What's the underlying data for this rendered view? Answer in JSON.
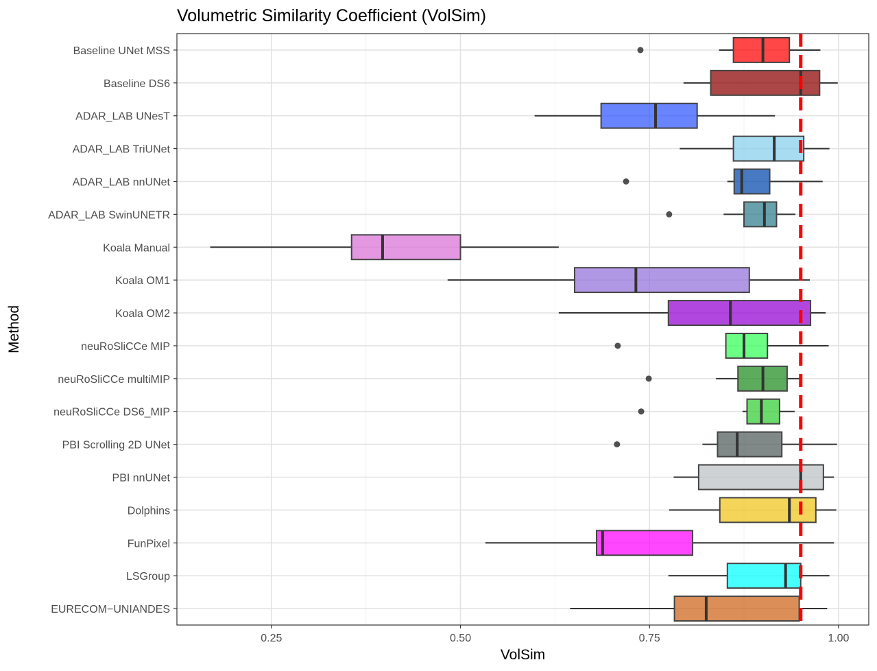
{
  "chart_data": {
    "type": "boxplot",
    "orientation": "horizontal",
    "title": "Volumetric Similarity Coefficient (VolSim)",
    "xlabel": "VolSim",
    "ylabel": "Method",
    "xlim": [
      0.125,
      1.04
    ],
    "x_ticks": [
      0.25,
      0.5,
      0.75,
      1.0
    ],
    "x_tick_labels": [
      "0.25",
      "0.50",
      "0.75",
      "1.00"
    ],
    "x_minor_ticks": [
      0.375,
      0.625,
      0.875
    ],
    "grid": true,
    "reference_line": {
      "x": 0.95,
      "color": "#ff0000",
      "style": "dashed"
    },
    "series": [
      {
        "name": "Baseline UNet MSS",
        "color": "#ff0000",
        "whisker_low": 0.842,
        "q1": 0.861,
        "median": 0.9,
        "q3": 0.935,
        "whisker_high": 0.976,
        "outliers": [
          0.738
        ]
      },
      {
        "name": "Baseline DS6",
        "color": "#8b0000",
        "whisker_low": 0.795,
        "q1": 0.831,
        "median": 0.95,
        "q3": 0.975,
        "whisker_high": 0.999,
        "outliers": []
      },
      {
        "name": "ADAR_LAB UNesT",
        "color": "#2f54ff",
        "whisker_low": 0.598,
        "q1": 0.686,
        "median": 0.758,
        "q3": 0.813,
        "whisker_high": 0.916,
        "outliers": []
      },
      {
        "name": "ADAR_LAB TriUNet",
        "color": "#87ceeb",
        "whisker_low": 0.79,
        "q1": 0.861,
        "median": 0.915,
        "q3": 0.954,
        "whisker_high": 0.988,
        "outliers": []
      },
      {
        "name": "ADAR_LAB nnUNet",
        "color": "#0047ab",
        "whisker_low": 0.853,
        "q1": 0.862,
        "median": 0.872,
        "q3": 0.909,
        "whisker_high": 0.979,
        "outliers": [
          0.719
        ]
      },
      {
        "name": "ADAR_LAB SwinUNETR",
        "color": "#2e7d8c",
        "whisker_low": 0.848,
        "q1": 0.875,
        "median": 0.902,
        "q3": 0.918,
        "whisker_high": 0.943,
        "outliers": [
          0.776
        ]
      },
      {
        "name": "Koala Manual",
        "color": "#da70d6",
        "whisker_low": 0.169,
        "q1": 0.356,
        "median": 0.397,
        "q3": 0.5,
        "whisker_high": 0.63,
        "outliers": []
      },
      {
        "name": "Koala OM1",
        "color": "#9370db",
        "whisker_low": 0.483,
        "q1": 0.651,
        "median": 0.732,
        "q3": 0.882,
        "whisker_high": 0.962,
        "outliers": []
      },
      {
        "name": "Koala OM2",
        "color": "#9400d3",
        "whisker_low": 0.63,
        "q1": 0.775,
        "median": 0.857,
        "q3": 0.963,
        "whisker_high": 0.983,
        "outliers": []
      },
      {
        "name": "neuRoSliCCe MIP",
        "color": "#32ff58",
        "whisker_low": 0.85,
        "q1": 0.851,
        "median": 0.875,
        "q3": 0.906,
        "whisker_high": 0.987,
        "outliers": [
          0.708
        ]
      },
      {
        "name": "neuRoSliCCe multiMIP",
        "color": "#1f8c1f",
        "whisker_low": 0.838,
        "q1": 0.867,
        "median": 0.9,
        "q3": 0.932,
        "whisker_high": 0.952,
        "outliers": [
          0.749
        ]
      },
      {
        "name": "neuRoSliCCe DS6_MIP",
        "color": "#32cd32",
        "whisker_low": 0.873,
        "q1": 0.879,
        "median": 0.898,
        "q3": 0.922,
        "whisker_high": 0.942,
        "outliers": [
          0.739
        ]
      },
      {
        "name": "PBI Scrolling 2D UNet",
        "color": "#4f5a5a",
        "whisker_low": 0.82,
        "q1": 0.84,
        "median": 0.866,
        "q3": 0.925,
        "whisker_high": 0.998,
        "outliers": [
          0.707
        ]
      },
      {
        "name": "PBI nnUNet",
        "color": "#bcc1c5",
        "whisker_low": 0.782,
        "q1": 0.815,
        "median": 0.95,
        "q3": 0.98,
        "whisker_high": 0.994,
        "outliers": []
      },
      {
        "name": "Dolphins",
        "color": "#f0c419",
        "whisker_low": 0.776,
        "q1": 0.843,
        "median": 0.935,
        "q3": 0.97,
        "whisker_high": 0.997,
        "outliers": []
      },
      {
        "name": "FunPixel",
        "color": "#ff00ff",
        "whisker_low": 0.533,
        "q1": 0.68,
        "median": 0.688,
        "q3": 0.807,
        "whisker_high": 0.994,
        "outliers": []
      },
      {
        "name": "LSGroup",
        "color": "#00ffff",
        "whisker_low": 0.775,
        "q1": 0.853,
        "median": 0.93,
        "q3": 0.95,
        "whisker_high": 0.988,
        "outliers": []
      },
      {
        "name": "EURECOM−UNIANDES",
        "color": "#cd6218",
        "whisker_low": 0.645,
        "q1": 0.783,
        "median": 0.825,
        "q3": 0.948,
        "whisker_high": 0.985,
        "outliers": []
      }
    ]
  }
}
